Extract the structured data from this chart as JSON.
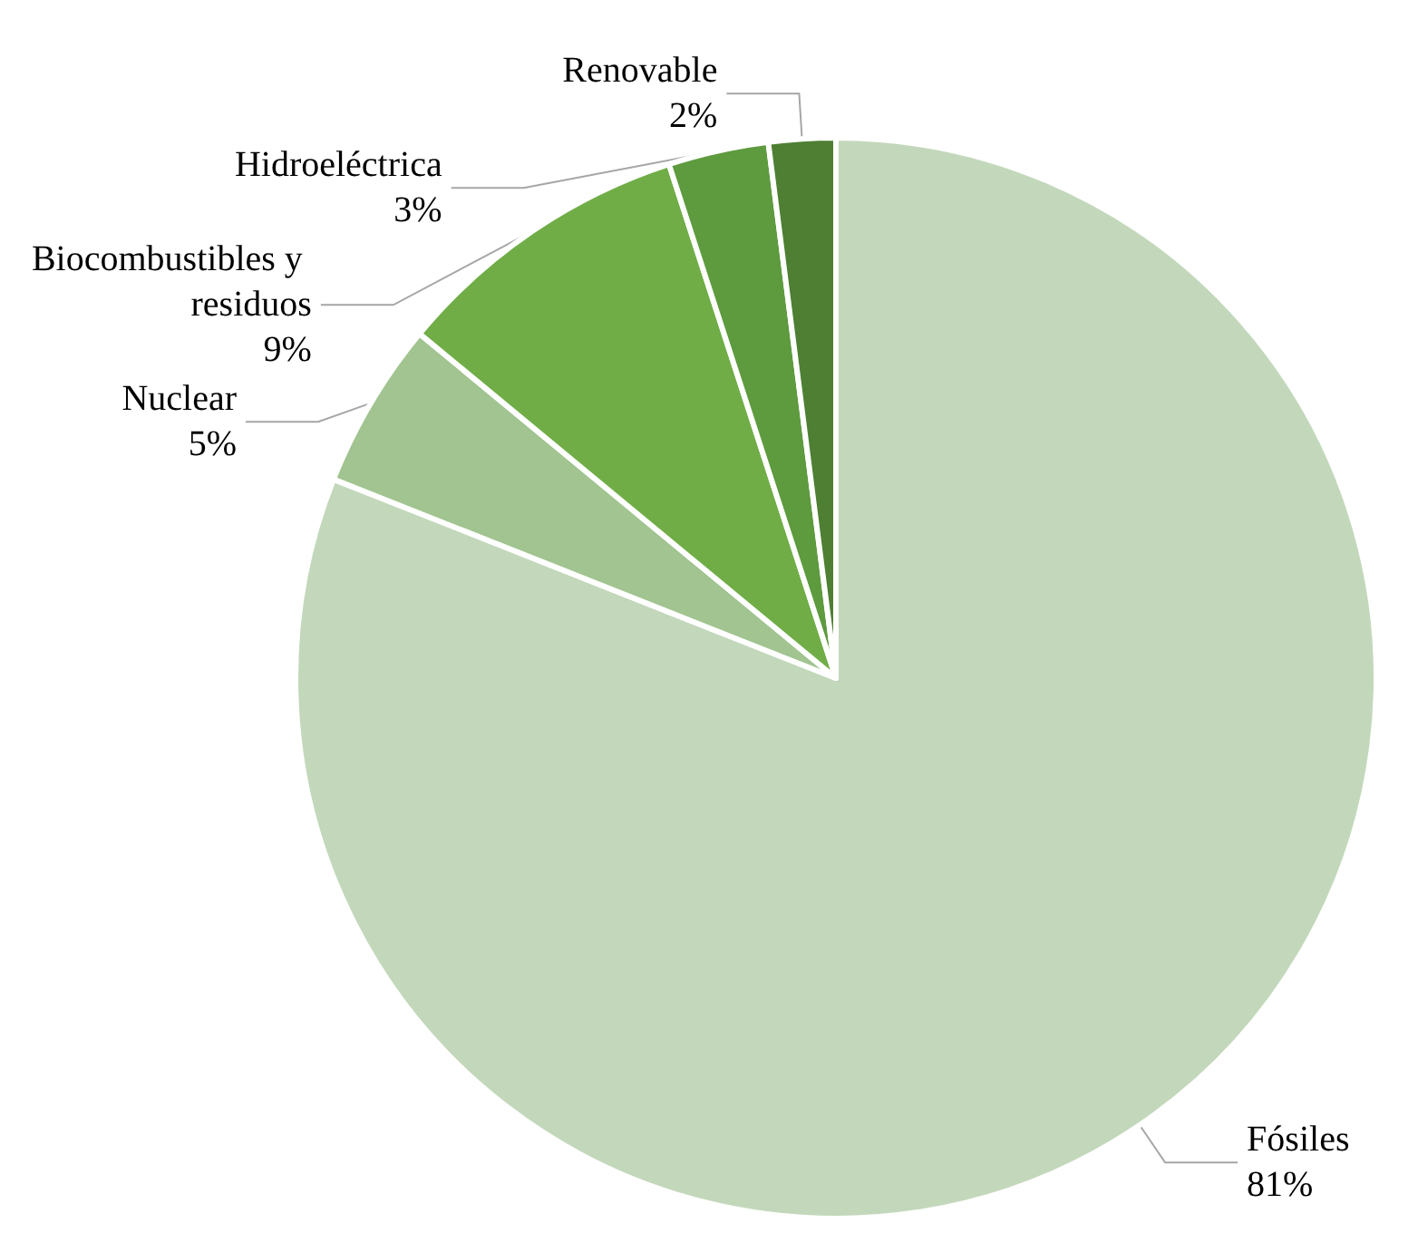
{
  "chart_data": {
    "type": "pie",
    "categories": [
      "Fósiles",
      "Nuclear",
      "Biocombustibles y residuos",
      "Hidroeléctrica",
      "Renovable"
    ],
    "values": [
      81,
      5,
      9,
      3,
      2
    ],
    "value_labels": [
      "81%",
      "5%",
      "9%",
      "3%",
      "2%"
    ],
    "colors": [
      "#c3d8bb",
      "#a1c490",
      "#70ad47",
      "#5e9a3e",
      "#4e7f32"
    ]
  }
}
